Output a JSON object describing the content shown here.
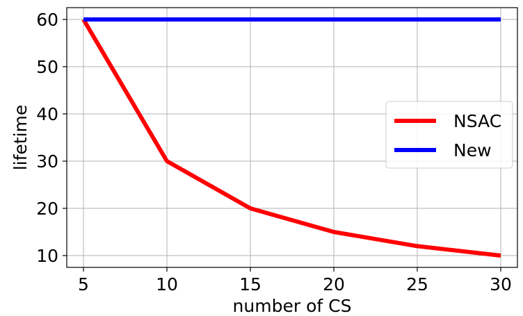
{
  "chart_data": {
    "type": "line",
    "title": "",
    "xlabel": "number of CS",
    "ylabel": "lifetime",
    "x": [
      5,
      10,
      15,
      20,
      25,
      30
    ],
    "xticks": [
      "5",
      "10",
      "15",
      "20",
      "25",
      "30"
    ],
    "yticks": [
      "10",
      "20",
      "30",
      "40",
      "50",
      "60"
    ],
    "xlim": [
      4,
      31
    ],
    "ylim": [
      7.5,
      62.5
    ],
    "grid": true,
    "legend_position": "center-right",
    "series": [
      {
        "name": "NSAC",
        "color": "#ff0000",
        "values": [
          60,
          30,
          20,
          15,
          12,
          10
        ]
      },
      {
        "name": "New",
        "color": "#0000ff",
        "values": [
          60,
          60,
          60,
          60,
          60,
          60
        ]
      }
    ]
  }
}
